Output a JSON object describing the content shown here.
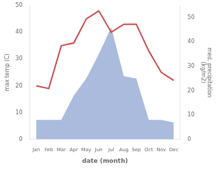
{
  "chart_data": {
    "type": "line",
    "categories": [
      "Jan",
      "Feb",
      "Mar",
      "Apr",
      "May",
      "Jun",
      "Jul",
      "Aug",
      "Sep",
      "Oct",
      "Nov",
      "Dec"
    ],
    "xlabel": "date (month)",
    "ylabel": "max temp (C)",
    "y2label": "med. precipitation\n(kg/m2)",
    "series": [
      {
        "type": "line",
        "color": "#cc4444",
        "values": [
          20,
          19,
          35,
          36,
          45,
          48,
          40,
          43,
          43,
          33,
          25,
          22
        ]
      },
      {
        "type": "area",
        "color": "#aabbdd",
        "axis": "y2",
        "values": [
          8,
          8,
          8,
          18,
          25,
          35,
          46,
          26,
          25,
          8,
          8,
          7
        ]
      }
    ],
    "ylim": [
      0,
      50
    ],
    "yticks": [
      0,
      10,
      20,
      30,
      40,
      50
    ],
    "y2lim": [
      0,
      55
    ],
    "y2ticks": [
      0,
      10,
      20,
      30,
      40,
      50
    ],
    "grid": false
  }
}
